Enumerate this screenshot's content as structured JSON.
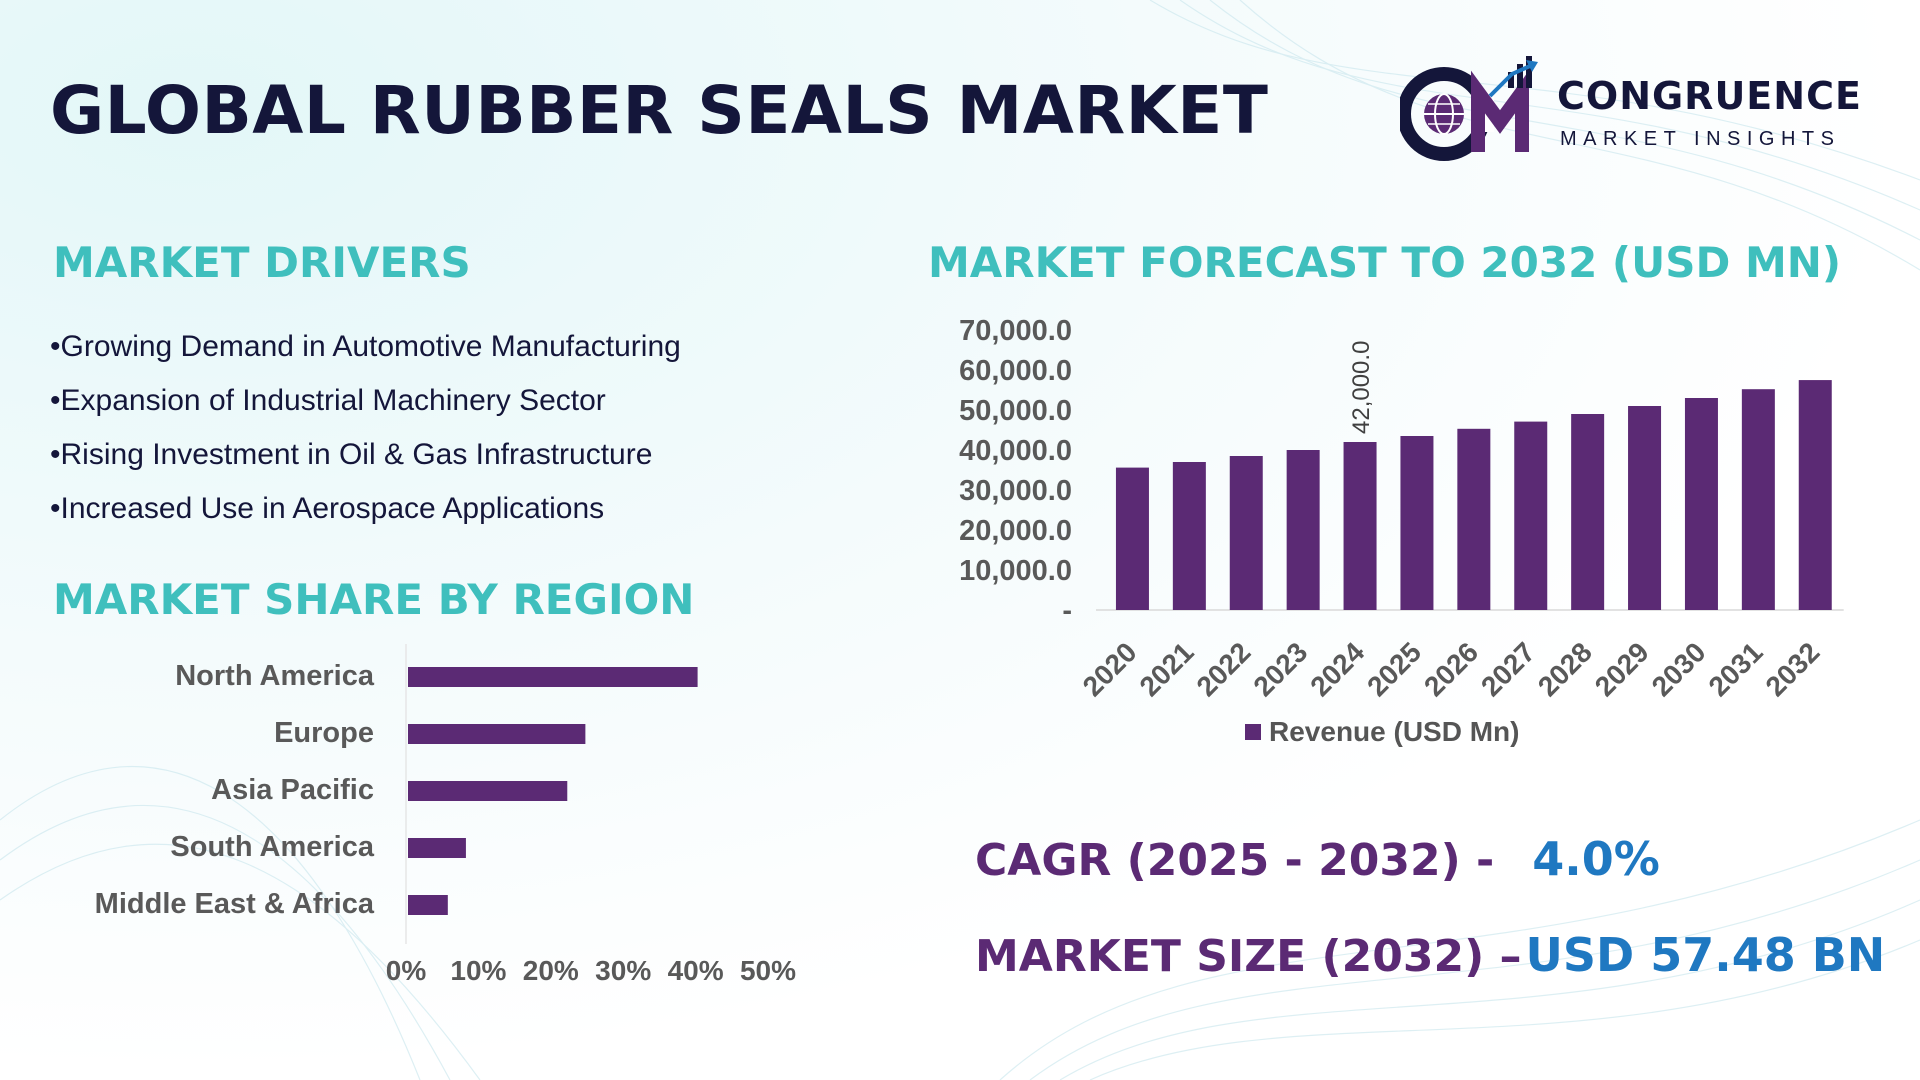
{
  "header": {
    "title": "GLOBAL RUBBER SEALS MARKET",
    "logo": {
      "name": "CONGRUENCE",
      "tagline": "MARKET INSIGHTS",
      "monogram_icon": "cm-globe-growth-logo"
    }
  },
  "drivers": {
    "heading": "MARKET DRIVERS",
    "items": [
      "Growing Demand in Automotive Manufacturing",
      "Expansion of Industrial Machinery Sector",
      "Rising Investment in Oil & Gas Infrastructure",
      "Increased Use in Aerospace Applications"
    ]
  },
  "region_section": {
    "heading": "MARKET SHARE BY REGION"
  },
  "forecast_section": {
    "heading": "MARKET FORECAST TO 2032 (USD MN)"
  },
  "stats": {
    "cagr_label": "CAGR (2025 - 2032) -",
    "cagr_value": "4.0%",
    "size_label": "MARKET SIZE (2032) –",
    "size_value": "USD 57.48 BN"
  },
  "colors": {
    "accent_teal": "#3fbfbd",
    "bar_purple": "#5b2a74",
    "navy": "#14163a",
    "value_blue": "#1f78c1"
  },
  "chart_data": [
    {
      "type": "bar",
      "orientation": "horizontal",
      "categories": [
        "North America",
        "Europe",
        "Asia Pacific",
        "South America",
        "Middle East & Africa"
      ],
      "values": [
        40,
        24.5,
        22,
        8,
        5.5
      ],
      "xlim": [
        0,
        50
      ],
      "xticks": [
        "0%",
        "10%",
        "20%",
        "30%",
        "40%",
        "50%"
      ],
      "grid": false
    },
    {
      "type": "bar",
      "categories": [
        "2020",
        "2021",
        "2022",
        "2023",
        "2024",
        "2025",
        "2026",
        "2027",
        "2028",
        "2029",
        "2030",
        "2031",
        "2032"
      ],
      "series": [
        {
          "name": "Revenue (USD Mn)",
          "values": [
            35600,
            37000,
            38500,
            40000,
            42000,
            43500,
            45300,
            47100,
            49000,
            51000,
            53000,
            55200,
            57480
          ]
        }
      ],
      "ylim": [
        0,
        70000
      ],
      "yticks": [
        "-",
        "10,000.0",
        "20,000.0",
        "30,000.0",
        "40,000.0",
        "50,000.0",
        "60,000.0",
        "70,000.0"
      ],
      "data_labels": [
        {
          "category": "2024",
          "text": "42,000.0"
        }
      ],
      "legend": "bottom",
      "grid": false
    }
  ]
}
